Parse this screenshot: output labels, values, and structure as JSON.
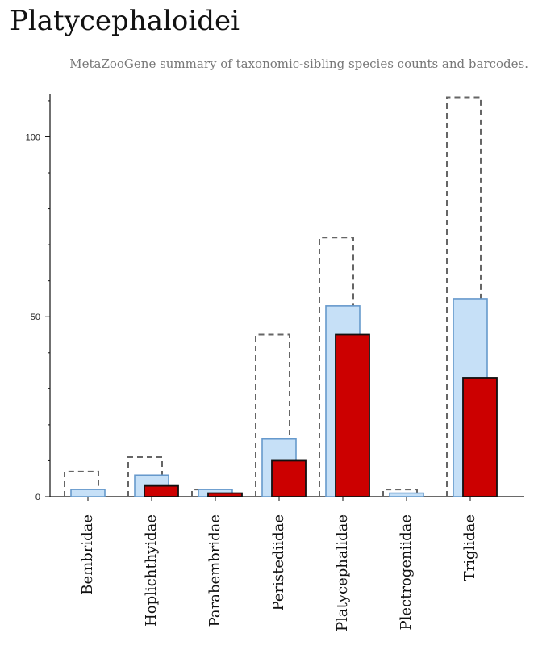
{
  "title": "Platycephaloidei",
  "subtitle": "MetaZooGene summary of taxonomic-sibling species counts and barcodes.",
  "colors": {
    "outline": "#666666",
    "light_fill": "#c6e0f7",
    "light_stroke": "#6699cc",
    "red_fill": "#cc0000",
    "red_stroke": "#111111"
  },
  "chart_data": {
    "type": "bar",
    "categories": [
      "Bembridae",
      "Hoplichthyidae",
      "Parabembridae",
      "Peristediidae",
      "Platycephalidae",
      "Plectrogeniidae",
      "Triglidae"
    ],
    "series": [
      {
        "values": [
          7,
          11,
          2,
          45,
          72,
          2,
          111
        ]
      },
      {
        "values": [
          2,
          6,
          2,
          16,
          53,
          1,
          55
        ]
      },
      {
        "values": [
          0,
          3,
          1,
          10,
          45,
          0,
          33
        ]
      }
    ],
    "ylim": [
      0,
      112
    ],
    "yticks": [
      0,
      50,
      100
    ],
    "ytick_labels": [
      "0",
      "50",
      "100"
    ],
    "grid": false,
    "xlabel": "",
    "ylabel": ""
  }
}
